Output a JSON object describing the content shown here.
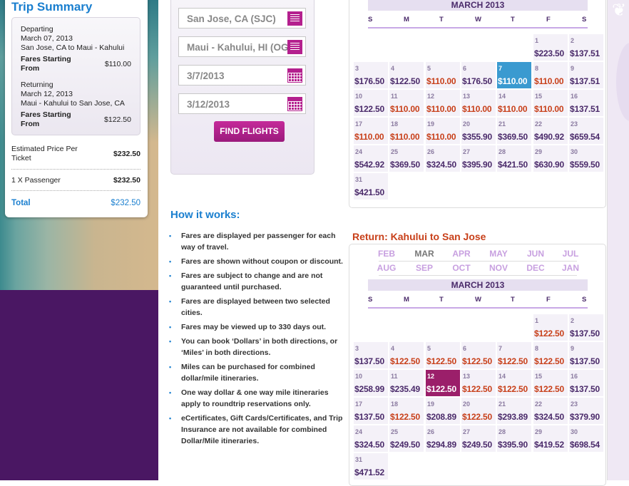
{
  "trip_summary": {
    "title": "Trip Summary",
    "departing": {
      "label": "Departing",
      "date": "March 07, 2013",
      "route": "San Jose, CA to Maui - Kahului",
      "fares_label": "Fares Starting From",
      "fare": "$110.00"
    },
    "returning": {
      "label": "Returning",
      "date": "March 12, 2013",
      "route": "Maui - Kahului to San Jose, CA",
      "fares_label": "Fares Starting From",
      "fare": "$122.50"
    },
    "estimated_label": "Estimated Price Per Ticket",
    "estimated": "$232.50",
    "passenger_label": "1 X Passenger",
    "passenger_total": "$232.50",
    "total_label": "Total",
    "total": "$232.50"
  },
  "search": {
    "from": "San Jose, CA (SJC)",
    "to": "Maui - Kahului, HI (OGG)",
    "depart_date": "3/7/2013",
    "return_date": "3/12/2013",
    "find_button": "FIND FLIGHTS"
  },
  "how_it_works": {
    "title": "How it works:",
    "items": [
      "Fares are displayed per passenger for each way of travel.",
      "Fares are shown without coupon or discount.",
      "Fares are subject to change and are not guaranteed until purchased.",
      "Fares are displayed between two selected cities.",
      "Fares may be viewed up to 330 days out.",
      "You can book ‘Dollars’ in both directions, or ‘Miles’ in both directions.",
      "Miles can be purchased for combined dollar/mile itineraries.",
      "One way dollar & one way mile itineraries apply to roundtrip reservations only.",
      "eCertificates, Gift Cards/Certificates, and Trip Insurance are not available for combined Dollar/Mile itineraries."
    ]
  },
  "weekdays": [
    "S",
    "M",
    "T",
    "W",
    "T",
    "F",
    "S"
  ],
  "depart_calendar": {
    "month": "MARCH 2013",
    "first_weekday": 5,
    "selected_day": 7,
    "selected_color": "#3a9ad0",
    "prices": [
      "$223.50",
      "$137.51",
      "$176.50",
      "$122.50",
      "$110.00",
      "$176.50",
      "$110.00",
      "$110.00",
      "$137.51",
      "$122.50",
      "$110.00",
      "$110.00",
      "$110.00",
      "$110.00",
      "$110.00",
      "$137.51",
      "$110.00",
      "$110.00",
      "$110.00",
      "$355.90",
      "$369.50",
      "$490.92",
      "$659.54",
      "$542.92",
      "$369.50",
      "$324.50",
      "$395.90",
      "$421.50",
      "$630.90",
      "$559.50",
      "$421.50"
    ],
    "lowest_days": [
      5,
      7,
      8,
      11,
      12,
      13,
      14,
      15,
      17,
      18,
      19
    ]
  },
  "return_calendar": {
    "title": "Return: Kahului to San Jose",
    "months": [
      "FEB",
      "MAR",
      "APR",
      "MAY",
      "JUN",
      "JUL",
      "AUG",
      "SEP",
      "OCT",
      "NOV",
      "DEC",
      "JAN"
    ],
    "current_month": "MAR",
    "month": "MARCH 2013",
    "first_weekday": 5,
    "selected_day": 12,
    "selected_color": "#9b1f6a",
    "prices": [
      "$122.50",
      "$137.50",
      "$137.50",
      "$122.50",
      "$122.50",
      "$122.50",
      "$122.50",
      "$122.50",
      "$137.50",
      "$258.99",
      "$235.49",
      "$122.50",
      "$122.50",
      "$122.50",
      "$122.50",
      "$137.50",
      "$137.50",
      "$122.50",
      "$208.89",
      "$122.50",
      "$293.89",
      "$324.50",
      "$379.90",
      "$324.50",
      "$249.50",
      "$294.89",
      "$249.50",
      "$395.90",
      "$419.52",
      "$698.54",
      "$471.52"
    ],
    "lowest_days": [
      1,
      4,
      5,
      6,
      7,
      8,
      12,
      13,
      14,
      15,
      18,
      20
    ]
  },
  "colors": {
    "accent_blue": "#1a7fcf",
    "magenta": "#b4208e",
    "low_fare": "#c8401a",
    "fare": "#4a2a6a"
  }
}
